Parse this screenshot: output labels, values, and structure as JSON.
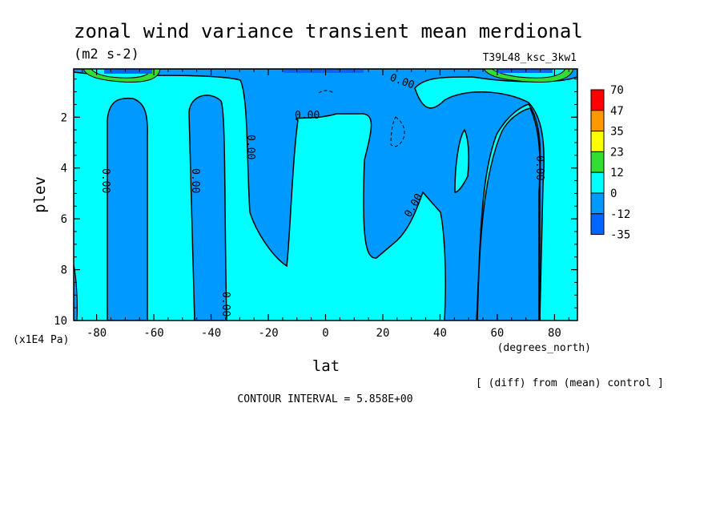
{
  "chart_data": {
    "type": "heatmap",
    "title": "zonal wind variance transient mean merdional",
    "units": "(m2 s-2)",
    "experiment": "T39L48_ksc_3kw1",
    "xlabel": "lat",
    "x_units": "(degrees_north)",
    "ylabel": "plev",
    "y_units": "(x1E4 Pa)",
    "xlim": [
      -88,
      88
    ],
    "ylim": [
      10,
      0.1
    ],
    "x_ticks": [
      "-80",
      "-60",
      "-40",
      "-20",
      "0",
      "20",
      "40",
      "60",
      "80"
    ],
    "y_ticks": [
      "2",
      "4",
      "6",
      "8",
      "10"
    ],
    "colorbar": {
      "levels": [
        "70",
        "47",
        "35",
        "23",
        "12",
        "0",
        "-12",
        "-35"
      ],
      "colors": [
        "#ff0000",
        "#ff9900",
        "#ffff00",
        "#33dd33",
        "#00ffff",
        "#0099ff",
        "#0066ff"
      ]
    },
    "contour_labels": [
      "0.00",
      "0.00",
      "0.00",
      "0.00",
      "0.00",
      "0.00",
      "0.00",
      "0.00",
      "0.00"
    ],
    "negative_region_color": "#0099ff",
    "positive_region_color": "#00ffff",
    "contour_interval_text": "CONTOUR INTERVAL = 5.858E+00",
    "diff_note": "[ (diff) from (mean) control ]"
  }
}
